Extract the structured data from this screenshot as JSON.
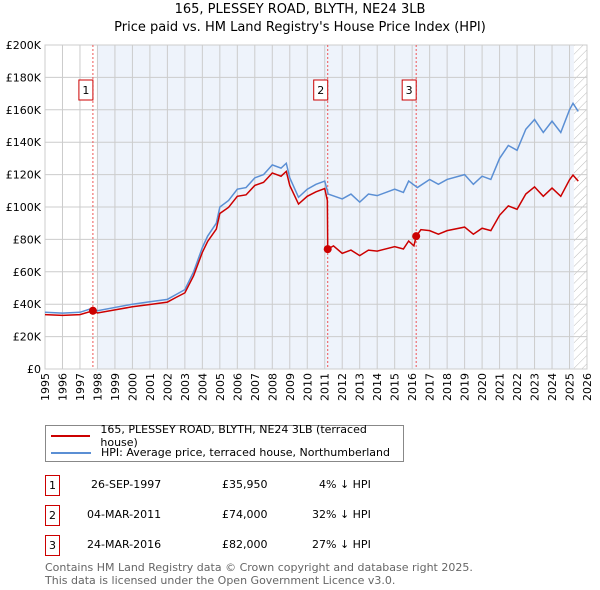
{
  "header": {
    "title": "165, PLESSEY ROAD, BLYTH, NE24 3LB",
    "subtitle": "Price paid vs. HM Land Registry's House Price Index (HPI)"
  },
  "chart_data": {
    "type": "line",
    "title": "165, PLESSEY ROAD, BLYTH, NE24 3LB",
    "subtitle": "Price paid vs. HM Land Registry's House Price Index (HPI)",
    "xlim": [
      1995,
      2026
    ],
    "ylim": [
      0,
      200000
    ],
    "x_ticks": [
      "1995",
      "1996",
      "1997",
      "1998",
      "1999",
      "2000",
      "2001",
      "2002",
      "2003",
      "2004",
      "2005",
      "2006",
      "2007",
      "2008",
      "2009",
      "2010",
      "2011",
      "2012",
      "2013",
      "2014",
      "2015",
      "2016",
      "2017",
      "2018",
      "2019",
      "2020",
      "2021",
      "2022",
      "2023",
      "2024",
      "2025",
      "2026"
    ],
    "y_ticks": [
      {
        "v": 0,
        "label": "£0"
      },
      {
        "v": 20000,
        "label": "£20K"
      },
      {
        "v": 40000,
        "label": "£40K"
      },
      {
        "v": 60000,
        "label": "£60K"
      },
      {
        "v": 80000,
        "label": "£80K"
      },
      {
        "v": 100000,
        "label": "£100K"
      },
      {
        "v": 120000,
        "label": "£120K"
      },
      {
        "v": 140000,
        "label": "£140K"
      },
      {
        "v": 160000,
        "label": "£160K"
      },
      {
        "v": 180000,
        "label": "£180K"
      },
      {
        "v": 200000,
        "label": "£200K"
      }
    ],
    "grid": true,
    "series": [
      {
        "name": "165, PLESSEY ROAD, BLYTH, NE24 3LB (terraced house)",
        "color": "#cc0000",
        "points": [
          [
            1995,
            33.6
          ],
          [
            1996,
            33.1
          ],
          [
            1997,
            33.6
          ],
          [
            1997.74,
            35.95
          ],
          [
            1998,
            34.6
          ],
          [
            1999,
            36.5
          ],
          [
            2000,
            38.4
          ],
          [
            2001,
            39.8
          ],
          [
            2002,
            41.3
          ],
          [
            2002.5,
            44.2
          ],
          [
            2003,
            47
          ],
          [
            2003.5,
            57.6
          ],
          [
            2004,
            72
          ],
          [
            2004.3,
            78.7
          ],
          [
            2004.8,
            86.4
          ],
          [
            2005,
            96
          ],
          [
            2005.5,
            99.8
          ],
          [
            2006,
            106.6
          ],
          [
            2006.5,
            107.5
          ],
          [
            2007,
            113.3
          ],
          [
            2007.5,
            115.2
          ],
          [
            2008,
            121
          ],
          [
            2008.5,
            119
          ],
          [
            2008.8,
            122
          ],
          [
            2009,
            113.3
          ],
          [
            2009.5,
            101.8
          ],
          [
            2010,
            106.6
          ],
          [
            2010.5,
            109.4
          ],
          [
            2011,
            111.4
          ],
          [
            2011.15,
            104
          ],
          [
            2011.17,
            74
          ],
          [
            2011.5,
            76
          ],
          [
            2012,
            71.4
          ],
          [
            2012.5,
            73.4
          ],
          [
            2013,
            70
          ],
          [
            2013.5,
            73.4
          ],
          [
            2014,
            72.8
          ],
          [
            2015,
            75.5
          ],
          [
            2015.5,
            74.1
          ],
          [
            2015.8,
            79
          ],
          [
            2016.1,
            76
          ],
          [
            2016.23,
            82
          ],
          [
            2016.5,
            86
          ],
          [
            2017,
            85.4
          ],
          [
            2017.5,
            83.2
          ],
          [
            2018,
            85.4
          ],
          [
            2019,
            87.6
          ],
          [
            2019.5,
            83.2
          ],
          [
            2020,
            86.9
          ],
          [
            2020.5,
            85.4
          ],
          [
            2021,
            94.9
          ],
          [
            2021.5,
            100.7
          ],
          [
            2022,
            98.6
          ],
          [
            2022.5,
            108
          ],
          [
            2023,
            112.4
          ],
          [
            2023.5,
            106.6
          ],
          [
            2024,
            111.7
          ],
          [
            2024.5,
            106.6
          ],
          [
            2025,
            116.8
          ],
          [
            2025.2,
            119.7
          ],
          [
            2025.5,
            116
          ]
        ]
      },
      {
        "name": "HPI: Average price, terraced house, Northumberland",
        "color": "#5b8fd4",
        "points": [
          [
            1995,
            35
          ],
          [
            1996,
            34.5
          ],
          [
            1997,
            35
          ],
          [
            1997.7,
            37.5
          ],
          [
            1998,
            36
          ],
          [
            1999,
            38
          ],
          [
            2000,
            40
          ],
          [
            2001,
            41.5
          ],
          [
            2002,
            43
          ],
          [
            2002.5,
            46
          ],
          [
            2003,
            49
          ],
          [
            2003.5,
            60
          ],
          [
            2004,
            75
          ],
          [
            2004.3,
            82
          ],
          [
            2004.8,
            90
          ],
          [
            2005,
            100
          ],
          [
            2005.5,
            104
          ],
          [
            2006,
            111
          ],
          [
            2006.5,
            112
          ],
          [
            2007,
            118
          ],
          [
            2007.5,
            120
          ],
          [
            2008,
            126
          ],
          [
            2008.5,
            124
          ],
          [
            2008.8,
            127
          ],
          [
            2009,
            118
          ],
          [
            2009.5,
            106
          ],
          [
            2010,
            111
          ],
          [
            2010.5,
            114
          ],
          [
            2011,
            116
          ],
          [
            2011.2,
            108
          ],
          [
            2012,
            105
          ],
          [
            2012.5,
            108
          ],
          [
            2013,
            103
          ],
          [
            2013.5,
            108
          ],
          [
            2014,
            107
          ],
          [
            2015,
            111
          ],
          [
            2015.5,
            109
          ],
          [
            2015.8,
            116
          ],
          [
            2016.3,
            112
          ],
          [
            2017,
            117
          ],
          [
            2017.5,
            114
          ],
          [
            2018,
            117
          ],
          [
            2019,
            120
          ],
          [
            2019.5,
            114
          ],
          [
            2020,
            119
          ],
          [
            2020.5,
            117
          ],
          [
            2021,
            130
          ],
          [
            2021.5,
            138
          ],
          [
            2022,
            135
          ],
          [
            2022.5,
            148
          ],
          [
            2023,
            154
          ],
          [
            2023.5,
            146
          ],
          [
            2024,
            153
          ],
          [
            2024.5,
            146
          ],
          [
            2025,
            160
          ],
          [
            2025.2,
            164
          ],
          [
            2025.5,
            159
          ]
        ]
      }
    ],
    "sales": [
      {
        "n": "1",
        "x": 1997.74,
        "y": 35950
      },
      {
        "n": "2",
        "x": 2011.17,
        "y": 74000
      },
      {
        "n": "3",
        "x": 2016.23,
        "y": 82000
      }
    ],
    "shaded_from": 1998,
    "hatched_from": 2025.25
  },
  "legend": {
    "items": [
      {
        "label": "165, PLESSEY ROAD, BLYTH, NE24 3LB (terraced house)",
        "color": "#cc0000"
      },
      {
        "label": "HPI: Average price, terraced house, Northumberland",
        "color": "#5b8fd4"
      }
    ]
  },
  "table": [
    {
      "n": "1",
      "date": "26-SEP-1997",
      "price": "£35,950",
      "hpi": "4% ↓ HPI"
    },
    {
      "n": "2",
      "date": "04-MAR-2011",
      "price": "£74,000",
      "hpi": "32% ↓ HPI"
    },
    {
      "n": "3",
      "date": "24-MAR-2016",
      "price": "£82,000",
      "hpi": "27% ↓ HPI"
    }
  ],
  "footer": {
    "line1": "Contains HM Land Registry data © Crown copyright and database right 2025.",
    "line2": "This data is licensed under the Open Government Licence v3.0."
  }
}
